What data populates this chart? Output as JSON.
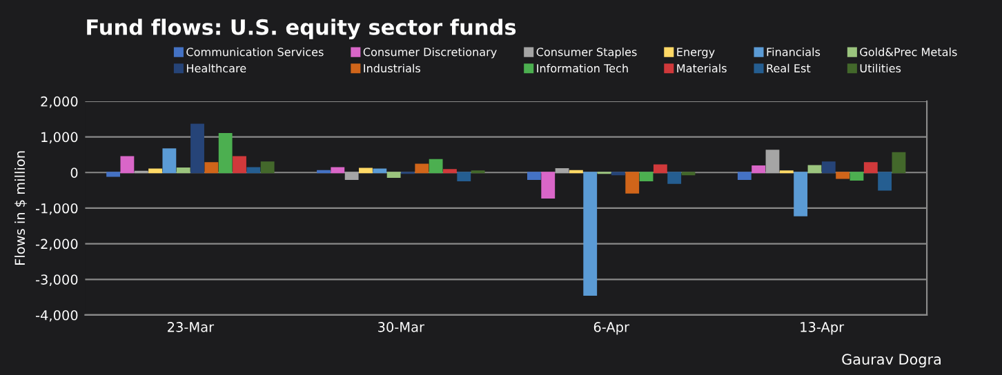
{
  "chart_data": {
    "type": "bar",
    "title": "Fund flows: U.S. equity sector funds",
    "ylabel": "Flows in $ million",
    "categories": [
      "23-Mar",
      "30-Mar",
      "6-Apr",
      "13-Apr"
    ],
    "series": [
      {
        "name": "Communication Services",
        "color": "#4472c4",
        "values": [
          -100,
          50,
          -190,
          -190
        ]
      },
      {
        "name": "Consumer Discretionary",
        "color": "#d966c8",
        "values": [
          440,
          130,
          -710,
          180
        ]
      },
      {
        "name": "Consumer Staples",
        "color": "#a5a5a5",
        "values": [
          30,
          -190,
          100,
          620
        ]
      },
      {
        "name": "Energy",
        "color": "#ffd966",
        "values": [
          90,
          110,
          50,
          40
        ]
      },
      {
        "name": "Financials",
        "color": "#5b9bd5",
        "values": [
          660,
          90,
          -3440,
          -1210
        ]
      },
      {
        "name": "Gold&Prec Metals",
        "color": "#9bc47e",
        "values": [
          120,
          -130,
          -20,
          190
        ]
      },
      {
        "name": "Healthcare",
        "color": "#264478",
        "values": [
          1350,
          -20,
          -60,
          290
        ]
      },
      {
        "name": "Industrials",
        "color": "#d0651a",
        "values": [
          270,
          230,
          -570,
          -160
        ]
      },
      {
        "name": "Information Tech",
        "color": "#4caf50",
        "values": [
          1090,
          360,
          -230,
          -210
        ]
      },
      {
        "name": "Materials",
        "color": "#d0393b",
        "values": [
          440,
          80,
          210,
          270
        ]
      },
      {
        "name": "Real Est",
        "color": "#255e91",
        "values": [
          130,
          -230,
          -300,
          -490
        ]
      },
      {
        "name": "Utilities",
        "color": "#43682b",
        "values": [
          290,
          40,
          -60,
          550
        ]
      }
    ],
    "ylim": [
      -4000,
      2000
    ],
    "yticks": [
      {
        "value": -4000,
        "label": "-4,000"
      },
      {
        "value": -3000,
        "label": "-3,000"
      },
      {
        "value": -2000,
        "label": "-2,000"
      },
      {
        "value": -1000,
        "label": "-1,000"
      },
      {
        "value": 0,
        "label": "0"
      },
      {
        "value": 1000,
        "label": "1,000"
      },
      {
        "value": 2000,
        "label": "2,000"
      }
    ],
    "grid": "y",
    "legend": "top",
    "annotations": [
      "Gaurav Dogra"
    ]
  }
}
